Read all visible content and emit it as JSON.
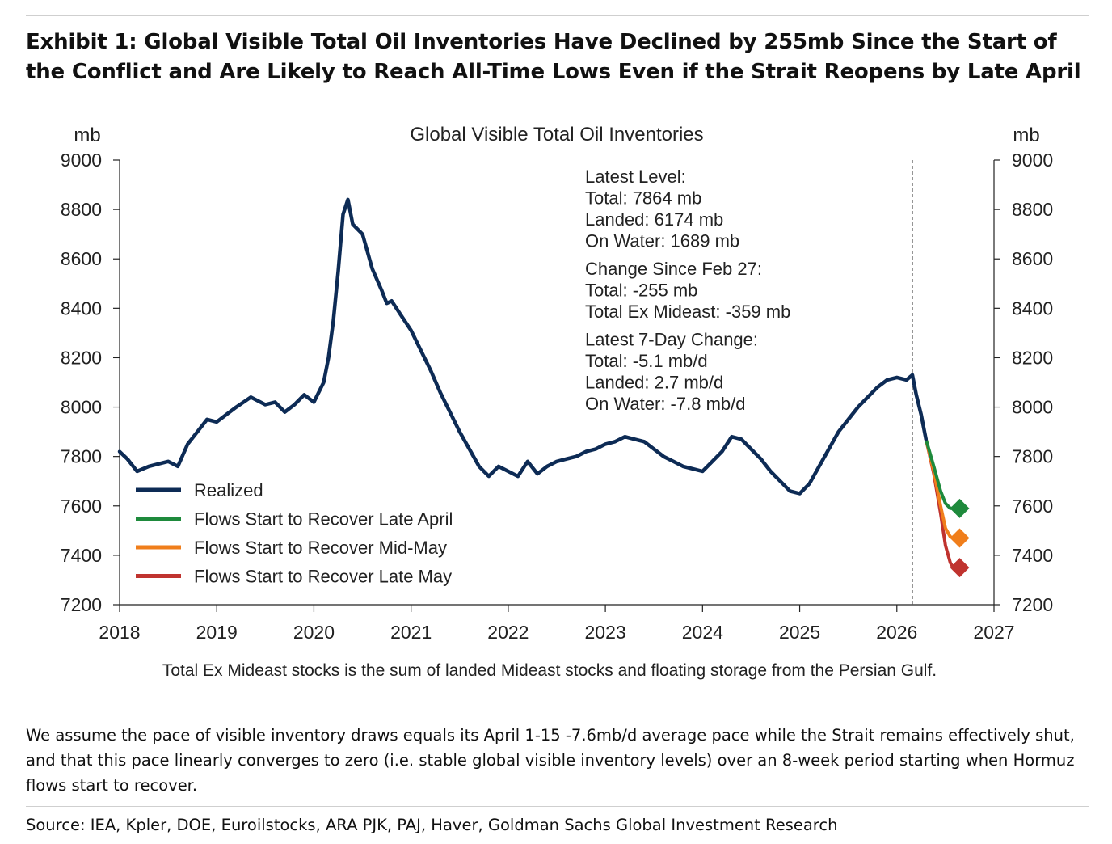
{
  "header": {
    "exhibit_title": "Exhibit 1: Global Visible Total Oil Inventories Have Declined by 255mb Since the Start of the Conflict and Are Likely to Reach All-Time Lows Even if the Strait Reopens by Late April"
  },
  "chart_data": {
    "type": "line",
    "title": "Global Visible Total Oil Inventories",
    "ylabel_left": "mb",
    "ylabel_right": "mb",
    "xlim": [
      2018,
      2027
    ],
    "ylim": [
      7200,
      9000
    ],
    "x_ticks": [
      2018,
      2019,
      2020,
      2021,
      2022,
      2023,
      2024,
      2025,
      2026,
      2027
    ],
    "y_ticks": [
      7200,
      7400,
      7600,
      7800,
      8000,
      8200,
      8400,
      8600,
      8800,
      9000
    ],
    "vertical_marker_x": 2026.16,
    "series": [
      {
        "name": "Realized",
        "color": "#0d2b55",
        "x": [
          2018.0,
          2018.08,
          2018.18,
          2018.3,
          2018.4,
          2018.5,
          2018.6,
          2018.7,
          2018.8,
          2018.9,
          2019.0,
          2019.1,
          2019.2,
          2019.35,
          2019.5,
          2019.6,
          2019.7,
          2019.8,
          2019.9,
          2020.0,
          2020.1,
          2020.15,
          2020.2,
          2020.25,
          2020.3,
          2020.35,
          2020.4,
          2020.45,
          2020.5,
          2020.6,
          2020.7,
          2020.75,
          2020.8,
          2020.9,
          2021.0,
          2021.1,
          2021.2,
          2021.3,
          2021.4,
          2021.5,
          2021.6,
          2021.7,
          2021.8,
          2021.9,
          2022.0,
          2022.1,
          2022.2,
          2022.3,
          2022.4,
          2022.5,
          2022.6,
          2022.7,
          2022.8,
          2022.9,
          2023.0,
          2023.1,
          2023.2,
          2023.3,
          2023.4,
          2023.5,
          2023.6,
          2023.7,
          2023.8,
          2023.9,
          2024.0,
          2024.1,
          2024.2,
          2024.3,
          2024.4,
          2024.5,
          2024.6,
          2024.7,
          2024.8,
          2024.9,
          2025.0,
          2025.1,
          2025.2,
          2025.3,
          2025.4,
          2025.5,
          2025.6,
          2025.7,
          2025.8,
          2025.9,
          2026.0,
          2026.1,
          2026.16,
          2026.2,
          2026.25,
          2026.3
        ],
        "values": [
          7820,
          7790,
          7740,
          7760,
          7770,
          7780,
          7760,
          7850,
          7900,
          7950,
          7940,
          7970,
          8000,
          8040,
          8010,
          8020,
          7980,
          8010,
          8050,
          8020,
          8100,
          8200,
          8350,
          8550,
          8780,
          8840,
          8740,
          8720,
          8700,
          8560,
          8470,
          8420,
          8430,
          8370,
          8310,
          8230,
          8150,
          8060,
          7980,
          7900,
          7830,
          7760,
          7720,
          7760,
          7740,
          7720,
          7780,
          7730,
          7760,
          7780,
          7790,
          7800,
          7820,
          7830,
          7850,
          7860,
          7880,
          7870,
          7860,
          7830,
          7800,
          7780,
          7760,
          7750,
          7740,
          7780,
          7820,
          7880,
          7870,
          7830,
          7790,
          7740,
          7700,
          7660,
          7650,
          7690,
          7760,
          7830,
          7900,
          7950,
          8000,
          8040,
          8080,
          8110,
          8120,
          8110,
          8130,
          8050,
          7970,
          7870
        ]
      },
      {
        "name": "Flows Start to Recover Late April",
        "color": "#1e8a3c",
        "x": [
          2026.3,
          2026.38,
          2026.45,
          2026.5,
          2026.55,
          2026.58
        ],
        "values": [
          7870,
          7760,
          7660,
          7610,
          7590,
          7590
        ]
      },
      {
        "name": "Flows Start to Recover Mid-May",
        "color": "#f07e1b",
        "x": [
          2026.3,
          2026.38,
          2026.45,
          2026.5,
          2026.55,
          2026.58
        ],
        "values": [
          7870,
          7740,
          7600,
          7510,
          7475,
          7470
        ]
      },
      {
        "name": "Flows Start to Recover Late May",
        "color": "#c0332f",
        "x": [
          2026.3,
          2026.38,
          2026.45,
          2026.5,
          2026.55,
          2026.58
        ],
        "values": [
          7870,
          7730,
          7570,
          7440,
          7370,
          7350
        ]
      }
    ],
    "endpoints": [
      {
        "name": "Flows Start to Recover Late April",
        "x": 2026.58,
        "value": 7590,
        "color": "#1e8a3c"
      },
      {
        "name": "Flows Start to Recover Mid-May",
        "x": 2026.58,
        "value": 7470,
        "color": "#f07e1b"
      },
      {
        "name": "Flows Start to Recover Late May",
        "x": 2026.58,
        "value": 7350,
        "color": "#c0332f"
      }
    ],
    "annotation_lines": [
      "Latest Level:",
      "Total: 7864 mb",
      "Landed: 6174 mb",
      "On Water: 1689 mb",
      "Change Since Feb 27:",
      "Total: -255 mb",
      "Total Ex Mideast: -359 mb",
      "Latest 7-Day Change:",
      "Total: -5.1 mb/d",
      "Landed: 2.7 mb/d",
      "On Water: -7.8 mb/d"
    ],
    "footnote": "Total Ex Mideast stocks is the sum of landed Mideast stocks and floating storage from the Persian Gulf."
  },
  "caption": "We assume the pace of visible inventory draws equals its April 1-15 -7.6mb/d average pace while the Strait remains effectively shut, and that this pace linearly converges to zero (i.e. stable global visible inventory levels) over an 8-week period starting when Hormuz flows start to recover.",
  "source": "Source: IEA, Kpler, DOE, Euroilstocks, ARA PJK, PAJ, Haver, Goldman Sachs Global Investment Research"
}
